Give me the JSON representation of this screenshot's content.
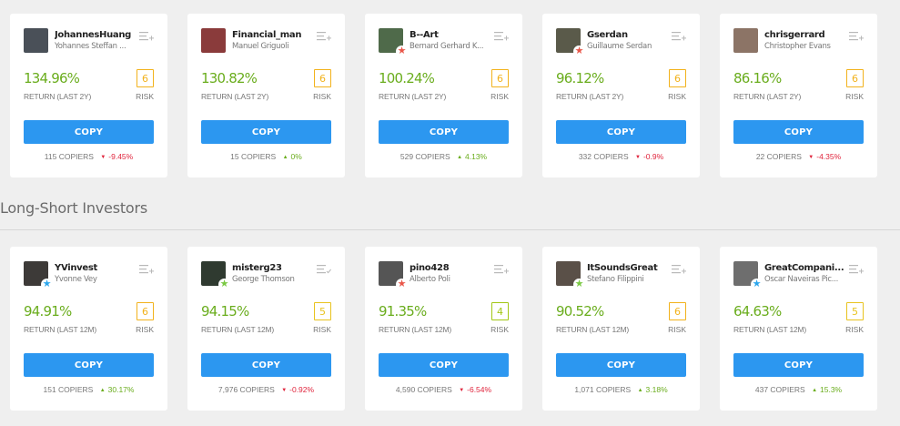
{
  "colors": {
    "accent_button": "#2c97f0",
    "positive": "#6aad1d",
    "negative": "#e0243c",
    "risk_6": "#f2b21c",
    "risk_5": "#e8c31e",
    "risk_4": "#a2c614",
    "badge_red": "#e9574a",
    "badge_blue": "#2ca6ec",
    "badge_green": "#7ac943"
  },
  "labels": {
    "copy": "COPY",
    "risk": "RISK",
    "copiers_suffix": "COPIERS"
  },
  "top_section": {
    "return_label": "RETURN (LAST 2Y)",
    "cards": [
      {
        "username": "JohannesHuang",
        "fullname": "Yohannes Steffan ...",
        "return": "134.96%",
        "risk": "6",
        "copiers": "115",
        "change": "-9.45%",
        "direction": "down",
        "badge": "none",
        "watch_icon": "add",
        "avatar_color": "#4a5058"
      },
      {
        "username": "Financial_man",
        "fullname": "Manuel Griguoli",
        "return": "130.82%",
        "risk": "6",
        "copiers": "15",
        "change": "0%",
        "direction": "up",
        "badge": "none",
        "watch_icon": "add",
        "avatar_color": "#8a3b3b"
      },
      {
        "username": "B--Art",
        "fullname": "Bernard Gerhard K...",
        "return": "100.24%",
        "risk": "6",
        "copiers": "529",
        "change": "4.13%",
        "direction": "up",
        "badge": "red",
        "watch_icon": "add",
        "avatar_color": "#4f6a4a"
      },
      {
        "username": "Gserdan",
        "fullname": "Guillaume Serdan",
        "return": "96.12%",
        "risk": "6",
        "copiers": "332",
        "change": "-0.9%",
        "direction": "down",
        "badge": "red",
        "watch_icon": "add",
        "avatar_color": "#5a5a4a"
      },
      {
        "username": "chrisgerrard",
        "fullname": "Christopher Evans",
        "return": "86.16%",
        "risk": "6",
        "copiers": "22",
        "change": "-4.35%",
        "direction": "down",
        "badge": "none",
        "watch_icon": "add",
        "avatar_color": "#8c7466"
      }
    ]
  },
  "section": {
    "title": "Long-Short Investors"
  },
  "bottom_section": {
    "return_label": "RETURN (LAST 12M)",
    "cards": [
      {
        "username": "YVinvest",
        "fullname": "Yvonne Vey",
        "return": "94.91%",
        "risk": "6",
        "copiers": "151",
        "change": "30.17%",
        "direction": "up",
        "badge": "blue",
        "watch_icon": "add",
        "avatar_color": "#3d3a38"
      },
      {
        "username": "misterg23",
        "fullname": "George Thomson",
        "return": "94.15%",
        "risk": "5",
        "copiers": "7,976",
        "change": "-0.92%",
        "direction": "down",
        "badge": "green",
        "watch_icon": "added",
        "avatar_color": "#2f3a30"
      },
      {
        "username": "pino428",
        "fullname": "Alberto Poli",
        "return": "91.35%",
        "risk": "4",
        "copiers": "4,590",
        "change": "-6.54%",
        "direction": "down",
        "badge": "red",
        "watch_icon": "add",
        "avatar_color": "#555555"
      },
      {
        "username": "ItSoundsGreat",
        "fullname": "Stefano Filippini",
        "return": "90.52%",
        "risk": "6",
        "copiers": "1,071",
        "change": "3.18%",
        "direction": "up",
        "badge": "green",
        "watch_icon": "add",
        "avatar_color": "#5a5048"
      },
      {
        "username": "GreatCompani...",
        "fullname": "Oscar Naveiras Pic...",
        "return": "64.63%",
        "risk": "5",
        "copiers": "437",
        "change": "15.3%",
        "direction": "up",
        "badge": "blue",
        "watch_icon": "add",
        "avatar_color": "#6e6e6e"
      }
    ]
  }
}
